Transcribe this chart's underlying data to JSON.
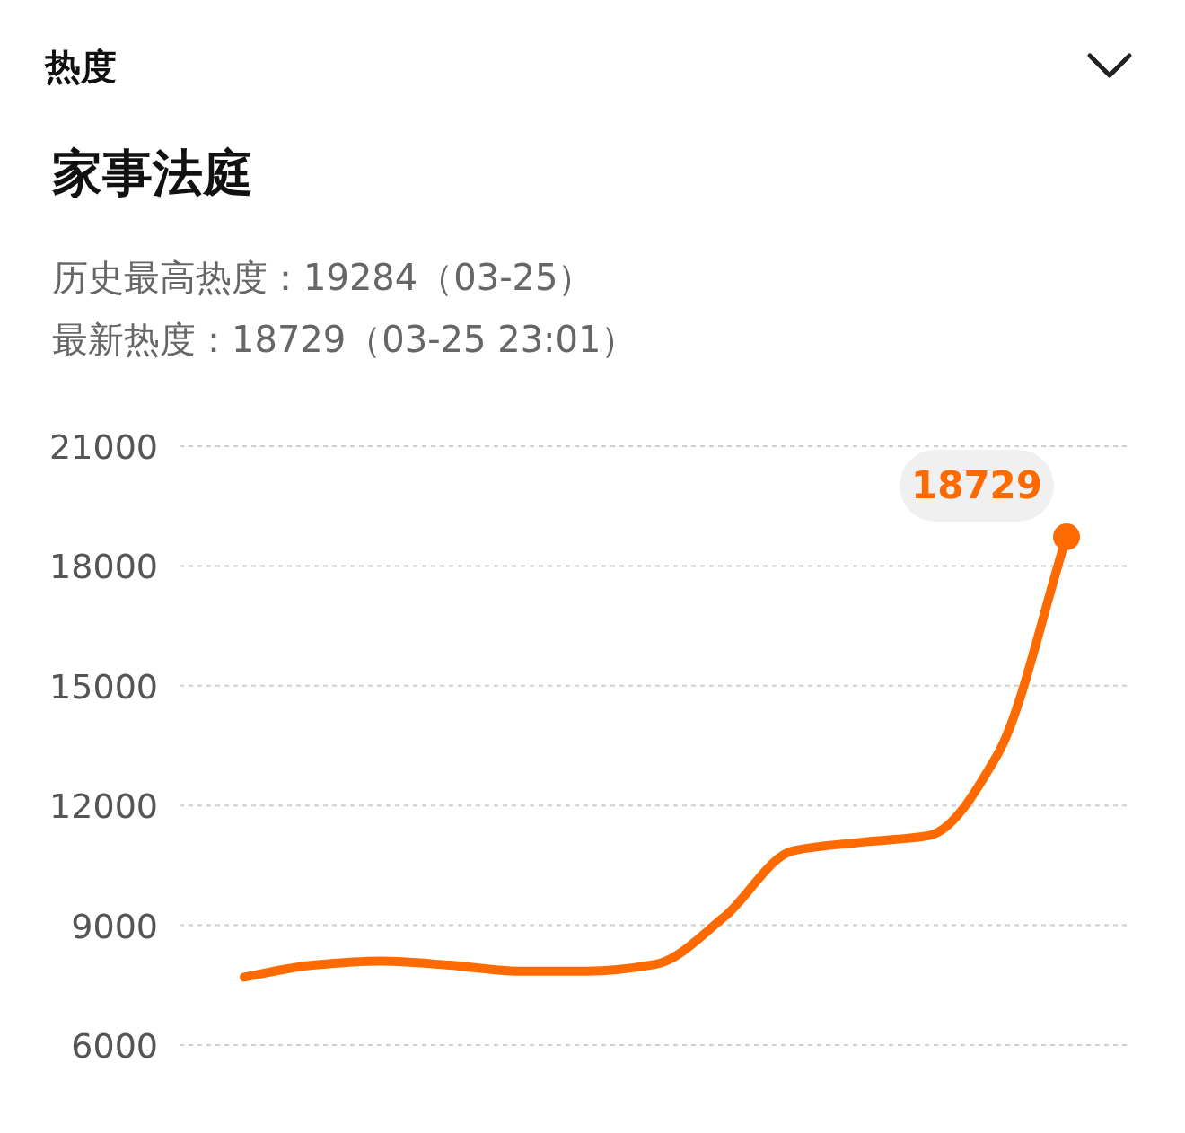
{
  "chart_data": {
    "type": "line",
    "title": "家事法庭",
    "subtitle": "历史最高热度：19284（03-25）",
    "annotations": [
      "热度",
      "最新热度：18729（03-25 23:01）"
    ],
    "categories": [
      null,
      null,
      null,
      null,
      null,
      null,
      null,
      null,
      null,
      null,
      null,
      null,
      null
    ],
    "series": [
      {
        "color": "#ff6a00",
        "values": [
          7700,
          8000,
          8100,
          8000,
          7850,
          7850,
          8020,
          9200,
          10860,
          11080,
          11250,
          13300,
          18729
        ],
        "value_labels": [
          null,
          null,
          null,
          null,
          null,
          null,
          null,
          null,
          null,
          null,
          null,
          null,
          "18729"
        ]
      }
    ],
    "ylim": [
      6000,
      21000
    ],
    "yticks": [
      6000,
      9000,
      12000,
      15000,
      18000,
      21000
    ],
    "grid": "y",
    "marker": "none",
    "line_style": "solid"
  }
}
